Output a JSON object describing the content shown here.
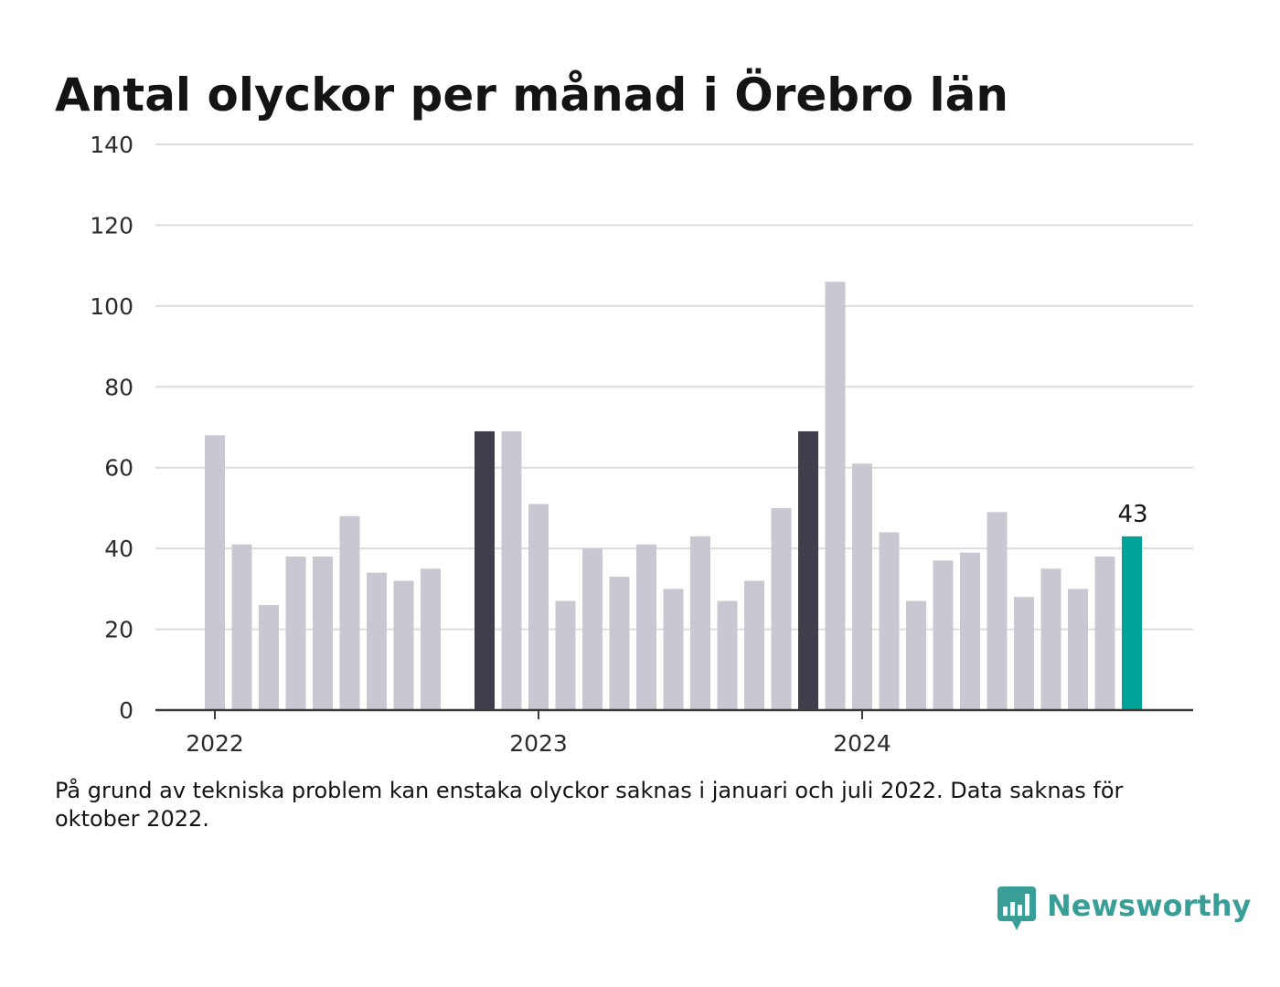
{
  "header": {
    "title": "Antal olyckor per månad i Örebro län"
  },
  "footnote": "På grund av tekniska problem kan enstaka olyckor saknas i januari och juli 2022. Data saknas för oktober 2022.",
  "brand": {
    "name": "Newsworthy",
    "logo_icon": "bar-chart-speech-bubble-icon",
    "color": "#3a9e98"
  },
  "colors": {
    "bar_default": "#c8c7d2",
    "bar_january": "#3f3e4c",
    "bar_latest": "#00a398",
    "grid": "#dcdcdc",
    "axis": "#3a3a3a"
  },
  "chart_data": {
    "type": "bar",
    "title": "Antal olyckor per månad i Örebro län",
    "xlabel": "",
    "ylabel": "",
    "ylim": [
      0,
      140
    ],
    "yticks": [
      "0",
      "20",
      "40",
      "60",
      "80",
      "100",
      "120",
      "140"
    ],
    "xtick_labels": [
      {
        "label": "2022",
        "category": "2022-01"
      },
      {
        "label": "2023",
        "category": "2023-01"
      },
      {
        "label": "2024",
        "category": "2024-01"
      }
    ],
    "grid": true,
    "legend": "none",
    "highlighted_label": "43",
    "categories": [
      "2022-01",
      "2022-02",
      "2022-03",
      "2022-04",
      "2022-05",
      "2022-06",
      "2022-07",
      "2022-08",
      "2022-09",
      "2022-10",
      "2022-11",
      "2022-12",
      "2023-01",
      "2023-02",
      "2023-03",
      "2023-04",
      "2023-05",
      "2023-06",
      "2023-07",
      "2023-08",
      "2023-09",
      "2023-10",
      "2023-11",
      "2023-12",
      "2024-01",
      "2024-02",
      "2024-03",
      "2024-04",
      "2024-05",
      "2024-06",
      "2024-07",
      "2024-08",
      "2024-09",
      "2024-10",
      "2024-11",
      "2024-12",
      "2025-01"
    ],
    "values": [
      68,
      41,
      26,
      38,
      38,
      48,
      34,
      32,
      35,
      null,
      69,
      69,
      51,
      27,
      40,
      33,
      41,
      30,
      43,
      27,
      32,
      50,
      69,
      106,
      61,
      44,
      27,
      37,
      39,
      49,
      28,
      35,
      30,
      38,
      43,
      null,
      null
    ],
    "bar_styles": [
      "default",
      "default",
      "default",
      "default",
      "default",
      "default",
      "default",
      "default",
      "default",
      "none",
      "january",
      "default",
      "default",
      "default",
      "default",
      "default",
      "default",
      "default",
      "default",
      "default",
      "default",
      "default",
      "january",
      "default",
      "default",
      "default",
      "default",
      "default",
      "default",
      "default",
      "default",
      "default",
      "default",
      "default",
      "latest",
      "none",
      "none"
    ]
  }
}
